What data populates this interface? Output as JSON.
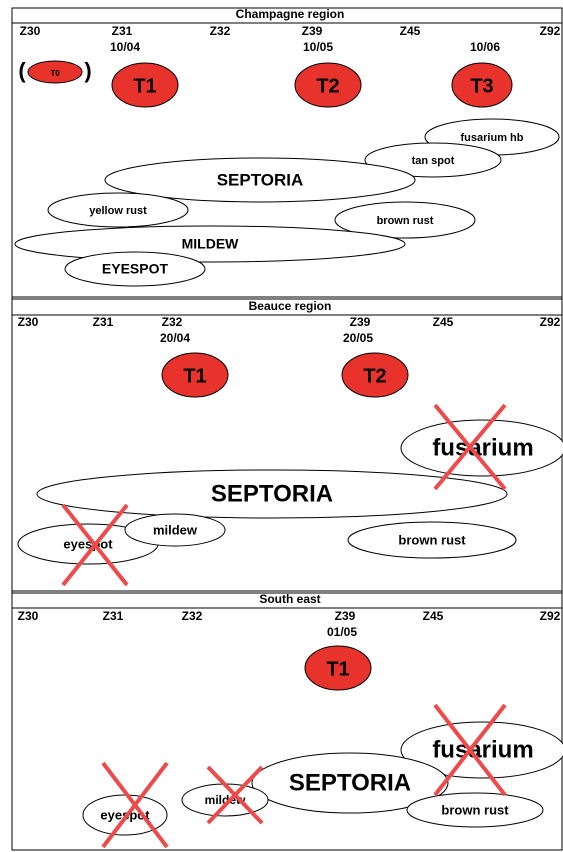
{
  "panels": [
    {
      "title": "Champagne region",
      "stages": [
        "Z30",
        "Z31",
        "Z32",
        "Z39",
        "Z45",
        "Z92"
      ],
      "dates": [
        "10/04",
        "10/05",
        "10/06"
      ],
      "treatments": [
        "T0",
        "T1",
        "T2",
        "T3"
      ],
      "diseases": [
        {
          "label": "fusarium hb",
          "crossed": false
        },
        {
          "label": "tan spot",
          "crossed": false
        },
        {
          "label": "SEPTORIA",
          "crossed": false
        },
        {
          "label": "yellow rust",
          "crossed": false
        },
        {
          "label": "brown rust",
          "crossed": false
        },
        {
          "label": "MILDEW",
          "crossed": false
        },
        {
          "label": "EYESPOT",
          "crossed": false
        }
      ]
    },
    {
      "title": "Beauce region",
      "stages": [
        "Z30",
        "Z31",
        "Z32",
        "Z39",
        "Z45",
        "Z92"
      ],
      "dates": [
        "20/04",
        "20/05"
      ],
      "treatments": [
        "T1",
        "T2"
      ],
      "diseases": [
        {
          "label": "fusarium",
          "crossed": true
        },
        {
          "label": "SEPTORIA",
          "crossed": false
        },
        {
          "label": "eyespot",
          "crossed": true
        },
        {
          "label": "mildew",
          "crossed": false
        },
        {
          "label": "brown rust",
          "crossed": false
        }
      ]
    },
    {
      "title": "South east",
      "stages": [
        "Z30",
        "Z31",
        "Z32",
        "Z39",
        "Z45",
        "Z92"
      ],
      "dates": [
        "01/05"
      ],
      "treatments": [
        "T1"
      ],
      "diseases": [
        {
          "label": "fusarium",
          "crossed": true
        },
        {
          "label": "SEPTORIA",
          "crossed": false
        },
        {
          "label": "brown rust",
          "crossed": false
        },
        {
          "label": "mildew",
          "crossed": true
        },
        {
          "label": "eyespot",
          "crossed": true
        }
      ]
    }
  ]
}
